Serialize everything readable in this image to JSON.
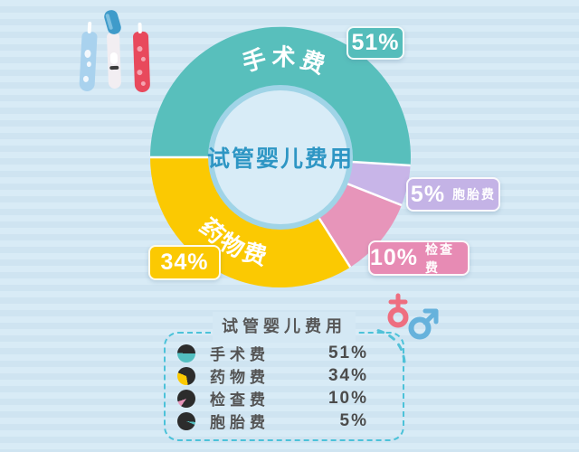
{
  "chart_data": {
    "type": "pie",
    "variant": "donut",
    "title": "试管婴儿费用",
    "center_label": "试管婴儿费用",
    "categories": [
      "手术费",
      "药物费",
      "检查费",
      "胞胎费"
    ],
    "values": [
      51,
      34,
      10,
      5
    ],
    "unit": "%",
    "start_angle_deg": 270,
    "direction": "clockwise",
    "segments": [
      {
        "label": "手术费",
        "value": 51,
        "pct_label": "51%",
        "color": "#58bfbc",
        "arc_label": true
      },
      {
        "label": "胞胎费",
        "value": 5,
        "pct_label": "5%",
        "color": "#c8b5e8",
        "arc_label": false
      },
      {
        "label": "检查费",
        "value": 10,
        "pct_label": "10%",
        "color": "#e795ba",
        "arc_label": false
      },
      {
        "label": "药物费",
        "value": 34,
        "pct_label": "34%",
        "color": "#fbc902",
        "arc_label": true
      }
    ],
    "hole_color": "#d8ecf7",
    "hole_ring_color": "#a0d4e7",
    "separator_color": "#ffffff",
    "legend_position": "bottom"
  },
  "legend": {
    "title": "试管婴儿费用",
    "icon_base_color": "#2c2c2c",
    "border_color": "#4cc2d9",
    "rows": [
      {
        "label": "手术费",
        "value": "51%",
        "pct": 51,
        "slice_color": "#52bfc0",
        "slice_start_deg": 90
      },
      {
        "label": "药物费",
        "value": "34%",
        "pct": 34,
        "slice_color": "#fbc902",
        "slice_start_deg": 170
      },
      {
        "label": "检查费",
        "value": "10%",
        "pct": 10,
        "slice_color": "#e795ba",
        "slice_start_deg": 215
      },
      {
        "label": "胞胎费",
        "value": "5%",
        "pct": 5,
        "slice_color": "#52bfc0",
        "slice_start_deg": 95
      }
    ]
  },
  "decorations": {
    "test_tubes": [
      "blue-test-tube",
      "capped-test-tube",
      "red-test-tube"
    ],
    "gender": {
      "female_color": "#ee6e80",
      "male_color": "#66b2dc",
      "dash_color": "#54c1d8"
    }
  }
}
